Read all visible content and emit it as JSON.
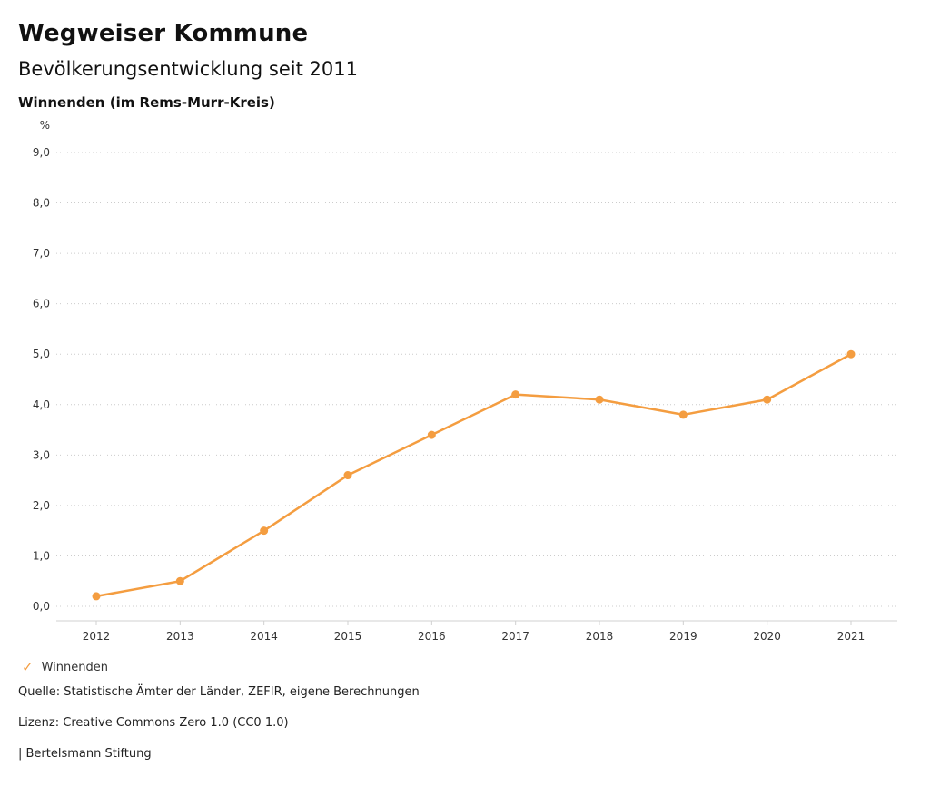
{
  "header": {
    "title": "Wegweiser Kommune",
    "subtitle": "Bevölkerungsentwicklung seit 2011",
    "location": "Winnenden (im Rems-Murr-Kreis)"
  },
  "chart_data": {
    "type": "line",
    "title": "Bevölkerungsentwicklung seit 2011",
    "unit_label": "%",
    "x": [
      "2012",
      "2013",
      "2014",
      "2015",
      "2016",
      "2017",
      "2018",
      "2019",
      "2020",
      "2021"
    ],
    "series": [
      {
        "name": "Winnenden",
        "color": "#F49D40",
        "values": [
          0.2,
          0.5,
          1.5,
          2.6,
          3.4,
          4.2,
          4.1,
          3.8,
          4.1,
          5.0
        ]
      }
    ],
    "ylim": [
      0,
      9
    ],
    "ytick_step": 1,
    "ytick_labels": [
      "0,0",
      "1,0",
      "2,0",
      "3,0",
      "4,0",
      "5,0",
      "6,0",
      "7,0",
      "8,0",
      "9,0"
    ],
    "grid": "dotted-horizontal",
    "legend_position": "bottom-left"
  },
  "legend": {
    "items": [
      {
        "label": "Winnenden",
        "color": "#F49D40",
        "check_icon": "✓"
      }
    ]
  },
  "footer": {
    "source": "Quelle: Statistische Ämter der Länder, ZEFIR, eigene Berechnungen",
    "license": "Lizenz: Creative Commons Zero 1.0 (CC0 1.0)",
    "attribution": "| Bertelsmann Stiftung"
  }
}
